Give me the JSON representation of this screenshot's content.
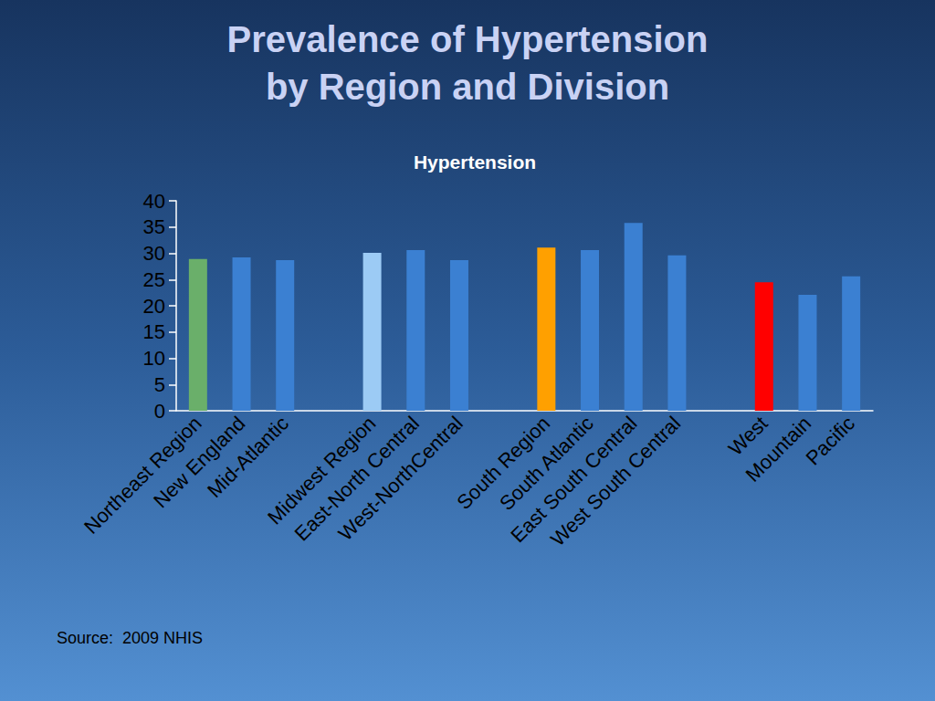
{
  "slide_title": "Prevalence of Hypertension\nby Region and Division",
  "source": "Source:  2009 NHIS",
  "chart_data": {
    "type": "bar",
    "title": "Hypertension",
    "categories": [
      "Northeast Region",
      "New England",
      "Mid-Atlantic",
      null,
      "Midwest Region",
      "East-North Central",
      "West-NorthCentral",
      null,
      "South Region",
      "South Atlantic",
      "East South Central",
      "West South Central",
      null,
      "West",
      "Mountain",
      "Pacific"
    ],
    "values": [
      28.9,
      29.2,
      28.7,
      null,
      30.1,
      30.6,
      28.7,
      null,
      31.1,
      30.6,
      35.8,
      29.6,
      null,
      24.5,
      22.1,
      25.6
    ],
    "colors": [
      "#6aaf6a",
      "#3b80d2",
      "#3b80d2",
      null,
      "#9ccbf5",
      "#3b80d2",
      "#3b80d2",
      null,
      "#ffa000",
      "#3b80d2",
      "#3b80d2",
      "#3b80d2",
      null,
      "#ff0000",
      "#3b80d2",
      "#3b80d2"
    ],
    "ylim": [
      0,
      40
    ],
    "yticks": [
      0,
      5,
      10,
      15,
      20,
      25,
      30,
      35,
      40
    ],
    "grid": false,
    "data_labels": false
  }
}
